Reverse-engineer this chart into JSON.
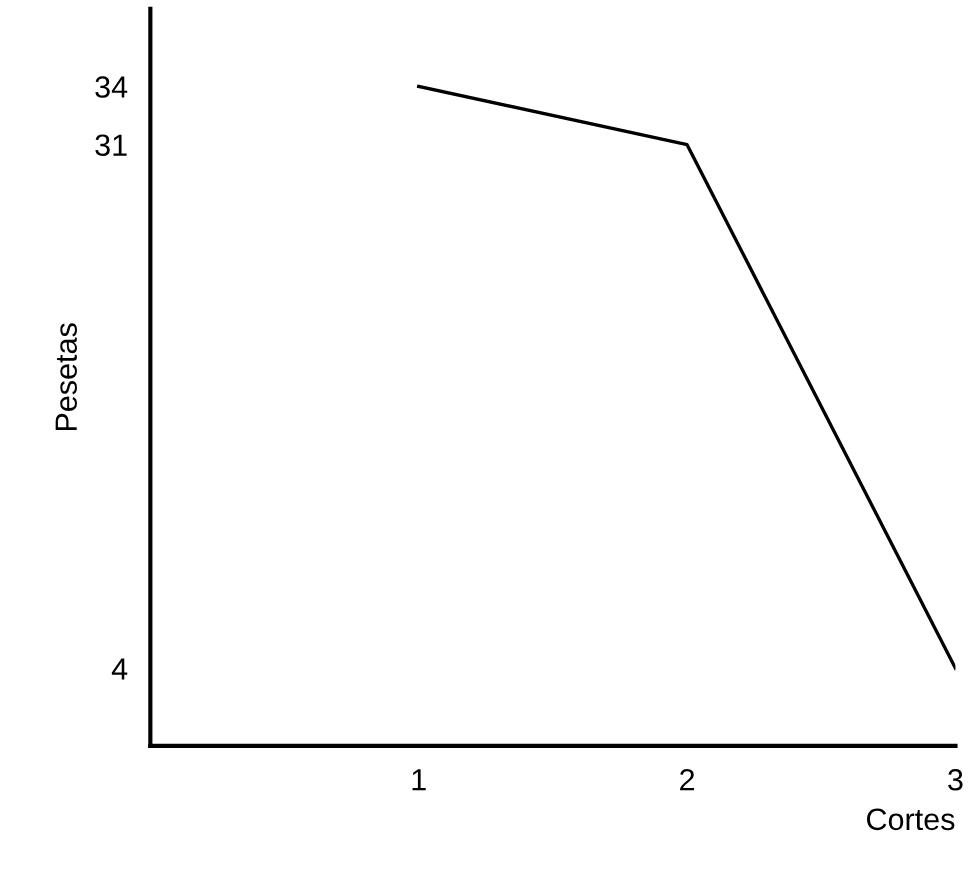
{
  "chart_data": {
    "type": "line",
    "xlabel": "Cortes",
    "ylabel": "Pesetas",
    "x": [
      1,
      2,
      3
    ],
    "series": [
      {
        "color": "#000000",
        "values": [
          34,
          31,
          4
        ]
      }
    ],
    "xlim": [
      0,
      3
    ],
    "xticks": [
      1,
      2,
      3
    ],
    "ylim": [
      0,
      38
    ],
    "yticks": [
      4,
      31,
      34
    ],
    "grid": false,
    "legend": false,
    "marker": "none",
    "line_style": "solid"
  }
}
